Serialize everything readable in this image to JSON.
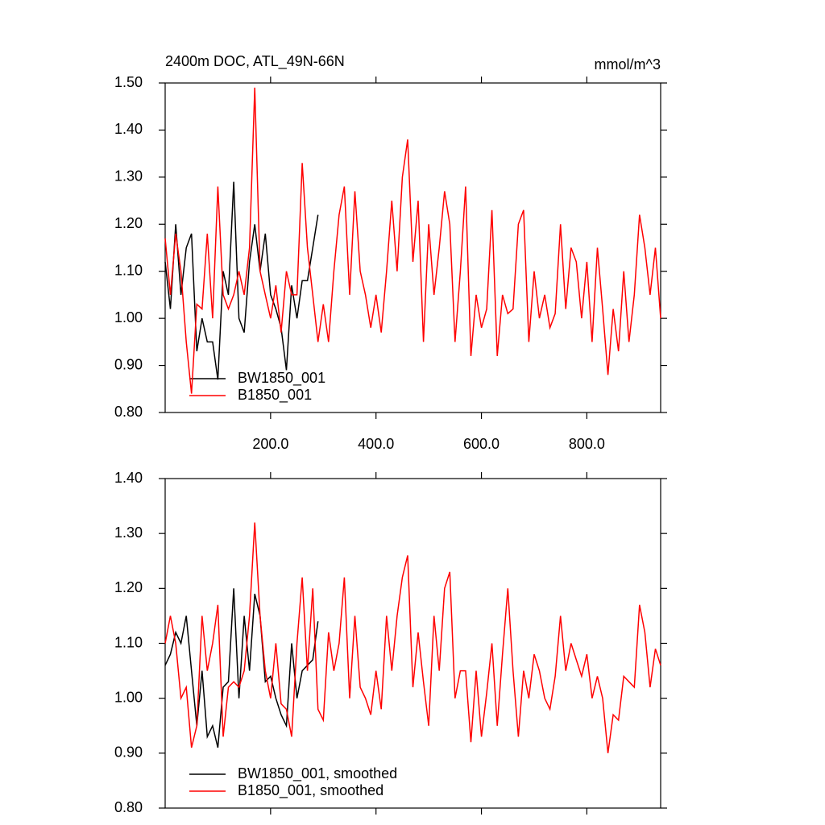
{
  "chart_data": [
    {
      "type": "line",
      "title": "2400m DOC, ATL_49N-66N",
      "right_title": "mmol/m^3",
      "xlim": [
        0,
        940
      ],
      "xticks": [
        {
          "value": 200,
          "label": "200.0"
        },
        {
          "value": 400,
          "label": "400.0"
        },
        {
          "value": 600,
          "label": "600.0"
        },
        {
          "value": 800,
          "label": "800.0"
        }
      ],
      "ylim": [
        0.8,
        1.5
      ],
      "yticks": [
        {
          "value": 0.8,
          "label": "0.80"
        },
        {
          "value": 0.9,
          "label": "0.90"
        },
        {
          "value": 1.0,
          "label": "1.00"
        },
        {
          "value": 1.1,
          "label": "1.10"
        },
        {
          "value": 1.2,
          "label": "1.20"
        },
        {
          "value": 1.3,
          "label": "1.30"
        },
        {
          "value": 1.4,
          "label": "1.40"
        },
        {
          "value": 1.5,
          "label": "1.50"
        }
      ],
      "legend": "lower left",
      "series": [
        {
          "name": "BW1850_001",
          "color": "#000000",
          "x": [
            0,
            10,
            20,
            30,
            40,
            50,
            60,
            70,
            80,
            90,
            100,
            110,
            120,
            130,
            140,
            150,
            160,
            170,
            180,
            190,
            200,
            210,
            220,
            230,
            240,
            250,
            260,
            270,
            280,
            290
          ],
          "values": [
            1.12,
            1.02,
            1.2,
            1.05,
            1.15,
            1.18,
            0.93,
            1.0,
            0.95,
            0.95,
            0.87,
            1.1,
            1.05,
            1.29,
            1.0,
            0.97,
            1.12,
            1.2,
            1.1,
            1.18,
            1.05,
            1.02,
            0.98,
            0.89,
            1.07,
            1.0,
            1.08,
            1.08,
            1.15,
            1.22
          ]
        },
        {
          "name": "B1850_001",
          "color": "#ff0000",
          "x": [
            0,
            10,
            20,
            30,
            40,
            50,
            60,
            70,
            80,
            90,
            100,
            110,
            120,
            130,
            140,
            150,
            160,
            170,
            180,
            190,
            200,
            210,
            220,
            230,
            240,
            250,
            260,
            270,
            280,
            290,
            300,
            310,
            320,
            330,
            340,
            350,
            360,
            370,
            380,
            390,
            400,
            410,
            420,
            430,
            440,
            450,
            460,
            470,
            480,
            490,
            500,
            510,
            520,
            530,
            540,
            550,
            560,
            570,
            580,
            590,
            600,
            610,
            620,
            630,
            640,
            650,
            660,
            670,
            680,
            690,
            700,
            710,
            720,
            730,
            740,
            750,
            760,
            770,
            780,
            790,
            800,
            810,
            820,
            830,
            840,
            850,
            860,
            870,
            880,
            890,
            900,
            910,
            920,
            930,
            940
          ],
          "values": [
            1.17,
            1.05,
            1.18,
            1.1,
            0.95,
            0.84,
            1.03,
            1.02,
            1.18,
            1.0,
            1.28,
            1.05,
            1.02,
            1.05,
            1.1,
            1.05,
            1.15,
            1.49,
            1.1,
            1.05,
            1.0,
            1.07,
            0.97,
            1.1,
            1.05,
            1.05,
            1.33,
            1.15,
            1.05,
            0.95,
            1.03,
            0.95,
            1.1,
            1.22,
            1.28,
            1.05,
            1.27,
            1.1,
            1.05,
            0.98,
            1.05,
            0.97,
            1.1,
            1.25,
            1.1,
            1.3,
            1.38,
            1.12,
            1.25,
            0.95,
            1.2,
            1.05,
            1.15,
            1.27,
            1.2,
            0.95,
            1.1,
            1.28,
            0.92,
            1.05,
            0.98,
            1.02,
            1.23,
            0.92,
            1.05,
            1.01,
            1.02,
            1.2,
            1.23,
            0.95,
            1.1,
            1.0,
            1.05,
            0.98,
            1.01,
            1.2,
            1.02,
            1.15,
            1.12,
            1.0,
            1.12,
            0.95,
            1.15,
            1.02,
            0.88,
            1.02,
            0.93,
            1.1,
            0.95,
            1.05,
            1.22,
            1.15,
            1.05,
            1.15,
            1.0
          ]
        }
      ]
    },
    {
      "type": "line",
      "xlim": [
        0,
        940
      ],
      "ylim": [
        0.8,
        1.4
      ],
      "yticks": [
        {
          "value": 0.8,
          "label": "0.80"
        },
        {
          "value": 0.9,
          "label": "0.90"
        },
        {
          "value": 1.0,
          "label": "1.00"
        },
        {
          "value": 1.1,
          "label": "1.10"
        },
        {
          "value": 1.2,
          "label": "1.20"
        },
        {
          "value": 1.3,
          "label": "1.30"
        },
        {
          "value": 1.4,
          "label": "1.40"
        }
      ],
      "legend": "lower left",
      "series": [
        {
          "name": "BW1850_001, smoothed",
          "color": "#000000",
          "x": [
            0,
            10,
            20,
            30,
            40,
            50,
            60,
            70,
            80,
            90,
            100,
            110,
            120,
            130,
            140,
            150,
            160,
            170,
            180,
            190,
            200,
            210,
            220,
            230,
            240,
            250,
            260,
            270,
            280,
            290
          ],
          "values": [
            1.06,
            1.08,
            1.12,
            1.1,
            1.15,
            1.05,
            0.95,
            1.05,
            0.93,
            0.95,
            0.91,
            1.02,
            1.03,
            1.2,
            1.0,
            1.15,
            1.05,
            1.19,
            1.15,
            1.03,
            1.04,
            1.0,
            0.97,
            0.95,
            1.1,
            1.0,
            1.05,
            1.06,
            1.07,
            1.14
          ]
        },
        {
          "name": "B1850_001, smoothed",
          "color": "#ff0000",
          "x": [
            0,
            10,
            20,
            30,
            40,
            50,
            60,
            70,
            80,
            90,
            100,
            110,
            120,
            130,
            140,
            150,
            160,
            170,
            180,
            190,
            200,
            210,
            220,
            230,
            240,
            250,
            260,
            270,
            280,
            290,
            300,
            310,
            320,
            330,
            340,
            350,
            360,
            370,
            380,
            390,
            400,
            410,
            420,
            430,
            440,
            450,
            460,
            470,
            480,
            490,
            500,
            510,
            520,
            530,
            540,
            550,
            560,
            570,
            580,
            590,
            600,
            610,
            620,
            630,
            640,
            650,
            660,
            670,
            680,
            690,
            700,
            710,
            720,
            730,
            740,
            750,
            760,
            770,
            780,
            790,
            800,
            810,
            820,
            830,
            840,
            850,
            860,
            870,
            880,
            890,
            900,
            910,
            920,
            930,
            940
          ],
          "values": [
            1.1,
            1.15,
            1.1,
            1.0,
            1.02,
            0.91,
            0.95,
            1.15,
            1.05,
            1.1,
            1.17,
            0.93,
            1.02,
            1.03,
            1.02,
            1.05,
            1.15,
            1.32,
            1.15,
            1.05,
            1.0,
            1.1,
            0.99,
            0.98,
            0.93,
            1.1,
            1.22,
            1.05,
            1.2,
            0.98,
            0.96,
            1.12,
            1.05,
            1.1,
            1.22,
            1.0,
            1.15,
            1.02,
            1.0,
            0.97,
            1.05,
            0.98,
            1.15,
            1.05,
            1.15,
            1.22,
            1.26,
            1.02,
            1.12,
            1.03,
            0.95,
            1.15,
            1.05,
            1.2,
            1.23,
            1.0,
            1.05,
            1.05,
            0.92,
            1.05,
            0.93,
            1.01,
            1.1,
            0.95,
            1.08,
            1.2,
            1.05,
            0.93,
            1.05,
            1.0,
            1.08,
            1.05,
            1.0,
            0.98,
            1.04,
            1.15,
            1.05,
            1.1,
            1.07,
            1.04,
            1.08,
            1.0,
            1.04,
            1.0,
            0.9,
            0.97,
            0.96,
            1.04,
            1.03,
            1.02,
            1.17,
            1.12,
            1.02,
            1.09,
            1.06
          ]
        }
      ]
    }
  ]
}
